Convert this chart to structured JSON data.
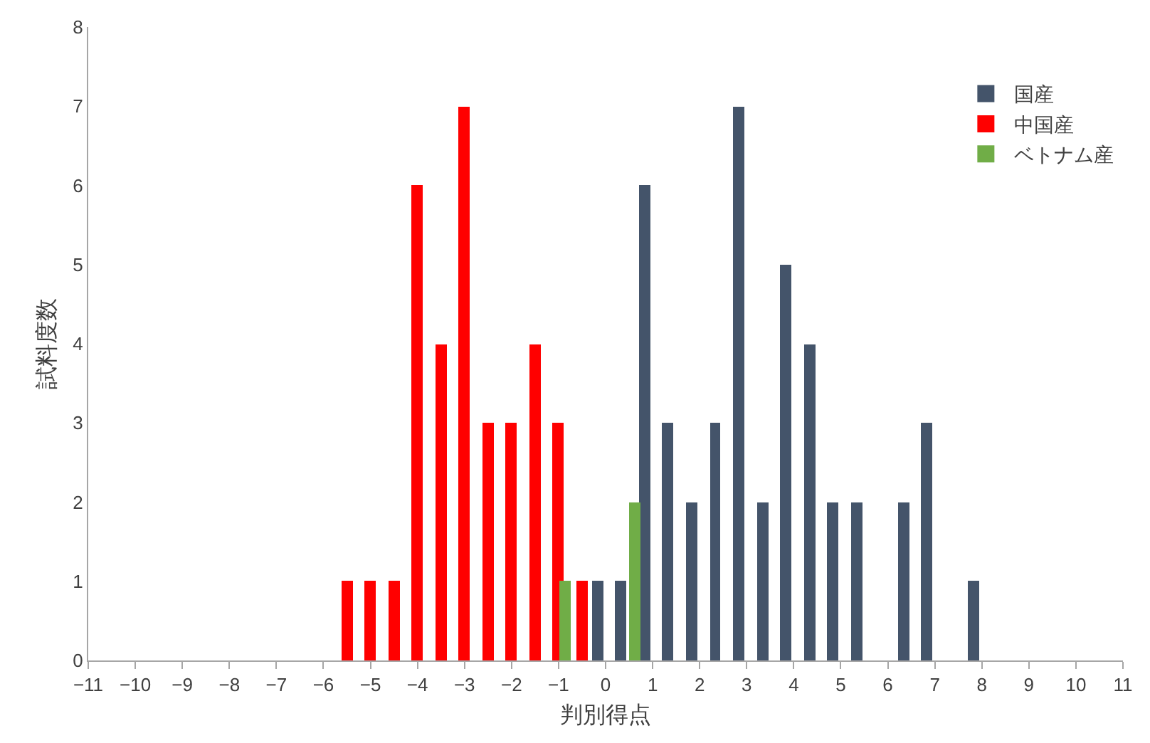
{
  "chart_data": {
    "type": "bar",
    "xlabel": "判別得点",
    "ylabel": "試料度数",
    "series": [
      {
        "name": "国産",
        "color": "#44546a",
        "x": [
          -0.17,
          0.33,
          0.83,
          1.33,
          1.83,
          2.33,
          2.83,
          3.33,
          3.83,
          4.33,
          4.83,
          5.33,
          6.33,
          6.83,
          7.83
        ],
        "values": [
          1,
          1,
          6,
          3,
          2,
          3,
          7,
          2,
          5,
          4,
          2,
          2,
          2,
          3,
          1
        ]
      },
      {
        "name": "中国産",
        "color": "#ff0000",
        "x": [
          -5.5,
          -5,
          -4.5,
          -4,
          -3.5,
          -3,
          -2.5,
          -2,
          -1.5,
          -1,
          -0.5
        ],
        "values": [
          1,
          1,
          1,
          6,
          4,
          7,
          3,
          3,
          4,
          3,
          1
        ]
      },
      {
        "name": "ベトナム産",
        "color": "#70ad47",
        "x": [
          -0.87,
          0.63
        ],
        "values": [
          1,
          2
        ]
      }
    ],
    "xlim": [
      -11,
      11
    ],
    "xticks": [
      {
        "value": -11,
        "label": "−11"
      },
      {
        "value": -10,
        "label": "−10"
      },
      {
        "value": -9,
        "label": "−9"
      },
      {
        "value": -8,
        "label": "−8"
      },
      {
        "value": -7,
        "label": "−7"
      },
      {
        "value": -6,
        "label": "−6"
      },
      {
        "value": -5,
        "label": "−5"
      },
      {
        "value": -4,
        "label": "−4"
      },
      {
        "value": -3,
        "label": "−3"
      },
      {
        "value": -2,
        "label": "−2"
      },
      {
        "value": -1,
        "label": "−1"
      },
      0,
      1,
      2,
      3,
      4,
      5,
      6,
      7,
      8,
      9,
      10,
      11
    ],
    "ylim": [
      0,
      8
    ],
    "yticks": [
      0,
      1,
      2,
      3,
      4,
      5,
      6,
      7,
      8
    ],
    "legend": "top right"
  }
}
